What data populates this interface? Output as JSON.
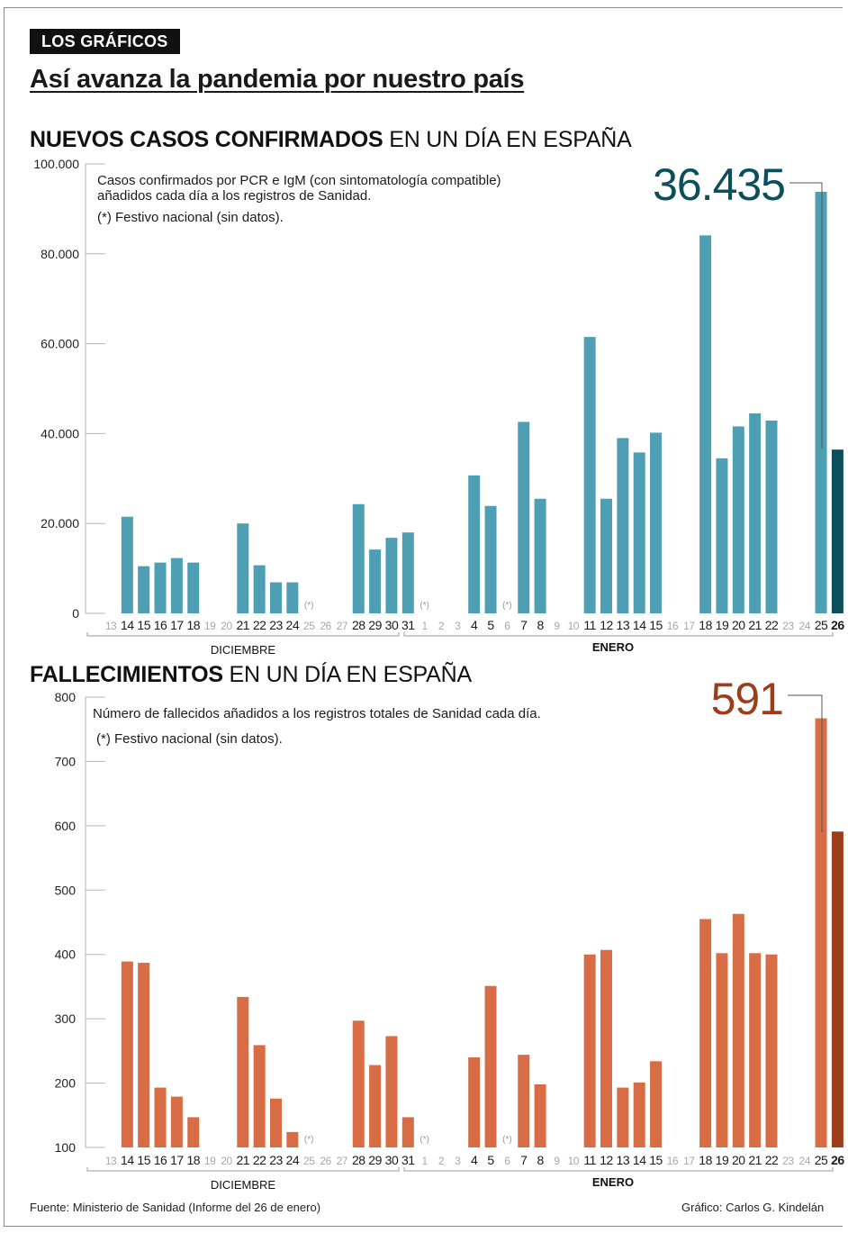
{
  "header": {
    "badge": "LOS GRÁFICOS",
    "headline": "Así avanza la pandemia por nuestro país"
  },
  "footer": {
    "source": "Fuente: Ministerio de Sanidad (Informe del 26 de enero)",
    "credit": "Gráfico: Carlos G. Kindelán"
  },
  "colors": {
    "cases": "#4e9fb3",
    "cases_highlight": "#0c4f5c",
    "deaths": "#d86c45",
    "deaths_highlight": "#9c3e1c",
    "inactive_label": "#a8a8a8"
  },
  "chart_data": [
    {
      "type": "bar",
      "title_bold": "NUEVOS CASOS CONFIRMADOS",
      "title_rest": " EN UN DÍA EN ESPAÑA",
      "notes": [
        "Casos confirmados por PCR e IgM (con sintomatología compatible)",
        "añadidos cada día a los registros de Sanidad.",
        "(*) Festivo nacional (sin datos)."
      ],
      "highlight_label": "36.435",
      "ylim": [
        0,
        100000
      ],
      "yticks": [
        0,
        20000,
        40000,
        60000,
        80000,
        100000
      ],
      "ytick_labels": [
        "0",
        "20.000",
        "40.000",
        "60.000",
        "80.000",
        "100.000"
      ],
      "months": [
        "DICIEMBRE",
        "ENERO"
      ],
      "holiday_marker": "(*)",
      "categories": [
        "13",
        "14",
        "15",
        "16",
        "17",
        "18",
        "19",
        "20",
        "21",
        "22",
        "23",
        "24",
        "25",
        "26",
        "27",
        "28",
        "29",
        "30",
        "31",
        "1",
        "2",
        "3",
        "4",
        "5",
        "6",
        "7",
        "8",
        "9",
        "10",
        "11",
        "12",
        "13",
        "14",
        "15",
        "16",
        "17",
        "18",
        "19",
        "20",
        "21",
        "22",
        "23",
        "24",
        "25",
        "26"
      ],
      "values": [
        null,
        21500,
        10500,
        11300,
        12300,
        11300,
        null,
        null,
        20000,
        10700,
        6900,
        6900,
        null,
        null,
        null,
        24300,
        14200,
        16800,
        18000,
        null,
        null,
        null,
        30700,
        23900,
        null,
        42600,
        25500,
        null,
        null,
        61500,
        25500,
        39000,
        35800,
        40200,
        null,
        null,
        84100,
        34500,
        41600,
        44500,
        42900,
        null,
        null,
        93800,
        36435
      ],
      "holidays": [
        12,
        19,
        24
      ],
      "highlight_index": 44
    },
    {
      "type": "bar",
      "title_bold": "FALLECIMIENTOS",
      "title_rest": " EN UN DÍA EN ESPAÑA",
      "notes": [
        "Número de fallecidos añadidos a los registros totales de Sanidad cada día.",
        "(*) Festivo nacional (sin datos)."
      ],
      "highlight_label": "591",
      "ylim": [
        100,
        800
      ],
      "yticks": [
        100,
        200,
        300,
        400,
        500,
        600,
        700,
        800
      ],
      "ytick_labels": [
        "100",
        "200",
        "300",
        "400",
        "500",
        "600",
        "700",
        "800"
      ],
      "months": [
        "DICIEMBRE",
        "ENERO"
      ],
      "holiday_marker": "(*)",
      "categories": [
        "13",
        "14",
        "15",
        "16",
        "17",
        "18",
        "19",
        "20",
        "21",
        "22",
        "23",
        "24",
        "25",
        "26",
        "27",
        "28",
        "29",
        "30",
        "31",
        "1",
        "2",
        "3",
        "4",
        "5",
        "6",
        "7",
        "8",
        "9",
        "10",
        "11",
        "12",
        "13",
        "14",
        "15",
        "16",
        "17",
        "18",
        "19",
        "20",
        "21",
        "22",
        "23",
        "24",
        "25",
        "26"
      ],
      "values": [
        null,
        389,
        387,
        193,
        179,
        147,
        null,
        null,
        334,
        259,
        176,
        124,
        null,
        null,
        null,
        297,
        228,
        273,
        147,
        null,
        null,
        null,
        240,
        351,
        null,
        244,
        198,
        null,
        null,
        400,
        407,
        193,
        201,
        234,
        null,
        null,
        455,
        402,
        463,
        402,
        400,
        null,
        null,
        767,
        591
      ],
      "holidays": [
        12,
        19,
        24
      ],
      "highlight_index": 44
    }
  ]
}
